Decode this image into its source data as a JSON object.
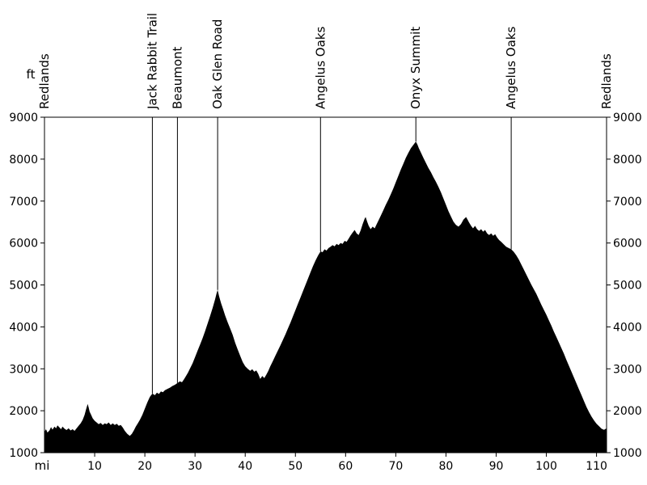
{
  "axes": {
    "y_unit": "ft",
    "x_unit": "mi"
  },
  "chart_data": {
    "type": "area",
    "title": "",
    "xlabel": "mi",
    "ylabel": "ft",
    "xlim": [
      0,
      112
    ],
    "ylim": [
      1000,
      9000
    ],
    "x_ticks": [
      10,
      20,
      30,
      40,
      50,
      60,
      70,
      80,
      90,
      100,
      110
    ],
    "y_ticks": [
      1000,
      2000,
      3000,
      4000,
      5000,
      6000,
      7000,
      8000,
      9000
    ],
    "grid": false,
    "legend": false,
    "colors": {
      "area": "#000000",
      "axis": "#000000",
      "background": "#ffffff"
    },
    "markers": [
      {
        "label": "Redlands",
        "mile": 0
      },
      {
        "label": "Jack Rabbit Trail",
        "mile": 21.5
      },
      {
        "label": "Beaumont",
        "mile": 26.5
      },
      {
        "label": "Oak Glen Road",
        "mile": 34.5
      },
      {
        "label": "Angelus Oaks",
        "mile": 55
      },
      {
        "label": "Onyx Summit",
        "mile": 74
      },
      {
        "label": "Angelus Oaks",
        "mile": 93
      },
      {
        "label": "Redlands",
        "mile": 112
      }
    ],
    "profile": [
      [
        0,
        1500
      ],
      [
        0.3,
        1560
      ],
      [
        0.6,
        1480
      ],
      [
        1,
        1530
      ],
      [
        1.3,
        1610
      ],
      [
        1.6,
        1550
      ],
      [
        2,
        1620
      ],
      [
        2.3,
        1580
      ],
      [
        2.6,
        1650
      ],
      [
        3,
        1600
      ],
      [
        3.3,
        1560
      ],
      [
        3.6,
        1620
      ],
      [
        4,
        1570
      ],
      [
        4.4,
        1540
      ],
      [
        4.8,
        1580
      ],
      [
        5.2,
        1530
      ],
      [
        5.6,
        1560
      ],
      [
        6,
        1520
      ],
      [
        6.4,
        1580
      ],
      [
        6.8,
        1640
      ],
      [
        7.2,
        1700
      ],
      [
        7.6,
        1780
      ],
      [
        8,
        1900
      ],
      [
        8.3,
        2040
      ],
      [
        8.6,
        2160
      ],
      [
        8.8,
        2080
      ],
      [
        9,
        1980
      ],
      [
        9.3,
        1900
      ],
      [
        9.6,
        1820
      ],
      [
        10,
        1760
      ],
      [
        10.4,
        1720
      ],
      [
        10.8,
        1680
      ],
      [
        11.2,
        1710
      ],
      [
        11.6,
        1660
      ],
      [
        12,
        1700
      ],
      [
        12.4,
        1680
      ],
      [
        12.8,
        1720
      ],
      [
        13.2,
        1660
      ],
      [
        13.6,
        1700
      ],
      [
        14,
        1660
      ],
      [
        14.4,
        1690
      ],
      [
        14.8,
        1640
      ],
      [
        15.2,
        1660
      ],
      [
        15.6,
        1600
      ],
      [
        16,
        1520
      ],
      [
        16.5,
        1450
      ],
      [
        17,
        1400
      ],
      [
        17.4,
        1450
      ],
      [
        17.8,
        1530
      ],
      [
        18.2,
        1620
      ],
      [
        18.6,
        1700
      ],
      [
        19,
        1780
      ],
      [
        19.5,
        1900
      ],
      [
        20,
        2050
      ],
      [
        20.5,
        2200
      ],
      [
        21,
        2330
      ],
      [
        21.5,
        2410
      ],
      [
        22,
        2370
      ],
      [
        22.4,
        2430
      ],
      [
        22.8,
        2400
      ],
      [
        23.2,
        2460
      ],
      [
        23.6,
        2440
      ],
      [
        24,
        2490
      ],
      [
        24.5,
        2520
      ],
      [
        25,
        2550
      ],
      [
        25.5,
        2590
      ],
      [
        26,
        2620
      ],
      [
        26.5,
        2660
      ],
      [
        27,
        2700
      ],
      [
        27.4,
        2680
      ],
      [
        27.8,
        2750
      ],
      [
        28.2,
        2830
      ],
      [
        28.6,
        2910
      ],
      [
        29,
        3010
      ],
      [
        29.5,
        3130
      ],
      [
        30,
        3280
      ],
      [
        30.5,
        3430
      ],
      [
        31,
        3580
      ],
      [
        31.5,
        3730
      ],
      [
        32,
        3900
      ],
      [
        32.5,
        4080
      ],
      [
        33,
        4260
      ],
      [
        33.5,
        4450
      ],
      [
        34,
        4660
      ],
      [
        34.3,
        4800
      ],
      [
        34.5,
        4880
      ],
      [
        34.8,
        4730
      ],
      [
        35.2,
        4560
      ],
      [
        35.6,
        4420
      ],
      [
        36,
        4270
      ],
      [
        36.5,
        4110
      ],
      [
        37,
        3960
      ],
      [
        37.5,
        3810
      ],
      [
        38,
        3620
      ],
      [
        38.5,
        3460
      ],
      [
        39,
        3310
      ],
      [
        39.5,
        3160
      ],
      [
        40,
        3060
      ],
      [
        40.5,
        3000
      ],
      [
        41,
        2950
      ],
      [
        41.4,
        2990
      ],
      [
        41.8,
        2930
      ],
      [
        42.2,
        2960
      ],
      [
        42.6,
        2880
      ],
      [
        43,
        2760
      ],
      [
        43.4,
        2830
      ],
      [
        43.8,
        2780
      ],
      [
        44.2,
        2860
      ],
      [
        44.6,
        2950
      ],
      [
        45,
        3060
      ],
      [
        45.5,
        3180
      ],
      [
        46,
        3310
      ],
      [
        46.5,
        3430
      ],
      [
        47,
        3560
      ],
      [
        47.5,
        3690
      ],
      [
        48,
        3820
      ],
      [
        48.5,
        3960
      ],
      [
        49,
        4100
      ],
      [
        49.5,
        4250
      ],
      [
        50,
        4400
      ],
      [
        50.5,
        4550
      ],
      [
        51,
        4700
      ],
      [
        51.5,
        4850
      ],
      [
        52,
        5000
      ],
      [
        52.5,
        5150
      ],
      [
        53,
        5300
      ],
      [
        53.5,
        5450
      ],
      [
        54,
        5580
      ],
      [
        54.5,
        5700
      ],
      [
        55,
        5800
      ],
      [
        55.4,
        5780
      ],
      [
        55.8,
        5850
      ],
      [
        56.2,
        5820
      ],
      [
        56.6,
        5880
      ],
      [
        57,
        5910
      ],
      [
        57.4,
        5950
      ],
      [
        57.8,
        5920
      ],
      [
        58.2,
        5980
      ],
      [
        58.6,
        5950
      ],
      [
        59,
        6000
      ],
      [
        59.4,
        5980
      ],
      [
        59.8,
        6050
      ],
      [
        60.2,
        6030
      ],
      [
        60.6,
        6100
      ],
      [
        61,
        6180
      ],
      [
        61.4,
        6250
      ],
      [
        61.8,
        6310
      ],
      [
        62.2,
        6230
      ],
      [
        62.6,
        6190
      ],
      [
        63,
        6300
      ],
      [
        63.4,
        6450
      ],
      [
        63.8,
        6580
      ],
      [
        64,
        6620
      ],
      [
        64.3,
        6510
      ],
      [
        64.6,
        6410
      ],
      [
        65,
        6330
      ],
      [
        65.4,
        6390
      ],
      [
        65.8,
        6350
      ],
      [
        66.2,
        6450
      ],
      [
        66.6,
        6550
      ],
      [
        67,
        6650
      ],
      [
        67.5,
        6780
      ],
      [
        68,
        6910
      ],
      [
        68.5,
        7030
      ],
      [
        69,
        7160
      ],
      [
        69.5,
        7300
      ],
      [
        70,
        7450
      ],
      [
        70.5,
        7600
      ],
      [
        71,
        7750
      ],
      [
        71.5,
        7890
      ],
      [
        72,
        8030
      ],
      [
        72.5,
        8150
      ],
      [
        73,
        8260
      ],
      [
        73.5,
        8340
      ],
      [
        74,
        8420
      ],
      [
        74.3,
        8350
      ],
      [
        74.6,
        8260
      ],
      [
        75,
        8160
      ],
      [
        75.5,
        8030
      ],
      [
        76,
        7910
      ],
      [
        76.5,
        7790
      ],
      [
        77,
        7690
      ],
      [
        77.5,
        7570
      ],
      [
        78,
        7460
      ],
      [
        78.5,
        7340
      ],
      [
        79,
        7210
      ],
      [
        79.5,
        7060
      ],
      [
        80,
        6910
      ],
      [
        80.5,
        6760
      ],
      [
        81,
        6630
      ],
      [
        81.5,
        6510
      ],
      [
        82,
        6430
      ],
      [
        82.5,
        6390
      ],
      [
        83,
        6450
      ],
      [
        83.5,
        6560
      ],
      [
        84,
        6620
      ],
      [
        84.3,
        6560
      ],
      [
        84.6,
        6490
      ],
      [
        85,
        6410
      ],
      [
        85.4,
        6350
      ],
      [
        85.8,
        6410
      ],
      [
        86.2,
        6330
      ],
      [
        86.6,
        6290
      ],
      [
        87,
        6330
      ],
      [
        87.4,
        6270
      ],
      [
        87.8,
        6310
      ],
      [
        88.2,
        6230
      ],
      [
        88.6,
        6190
      ],
      [
        89,
        6230
      ],
      [
        89.4,
        6170
      ],
      [
        89.8,
        6210
      ],
      [
        90.2,
        6130
      ],
      [
        90.6,
        6070
      ],
      [
        91,
        6030
      ],
      [
        91.5,
        5970
      ],
      [
        92,
        5910
      ],
      [
        92.5,
        5880
      ],
      [
        93,
        5850
      ],
      [
        93.5,
        5790
      ],
      [
        94,
        5710
      ],
      [
        94.5,
        5610
      ],
      [
        95,
        5490
      ],
      [
        95.5,
        5370
      ],
      [
        96,
        5250
      ],
      [
        96.5,
        5130
      ],
      [
        97,
        5010
      ],
      [
        97.5,
        4900
      ],
      [
        98,
        4790
      ],
      [
        98.5,
        4660
      ],
      [
        99,
        4530
      ],
      [
        99.5,
        4410
      ],
      [
        100,
        4290
      ],
      [
        100.5,
        4160
      ],
      [
        101,
        4030
      ],
      [
        101.5,
        3890
      ],
      [
        102,
        3760
      ],
      [
        102.5,
        3630
      ],
      [
        103,
        3490
      ],
      [
        103.5,
        3360
      ],
      [
        104,
        3210
      ],
      [
        104.5,
        3070
      ],
      [
        105,
        2930
      ],
      [
        105.5,
        2790
      ],
      [
        106,
        2650
      ],
      [
        106.5,
        2510
      ],
      [
        107,
        2370
      ],
      [
        107.5,
        2230
      ],
      [
        108,
        2090
      ],
      [
        108.5,
        1970
      ],
      [
        109,
        1860
      ],
      [
        109.5,
        1770
      ],
      [
        110,
        1690
      ],
      [
        110.5,
        1630
      ],
      [
        111,
        1570
      ],
      [
        111.5,
        1545
      ],
      [
        112,
        1580
      ]
    ]
  }
}
